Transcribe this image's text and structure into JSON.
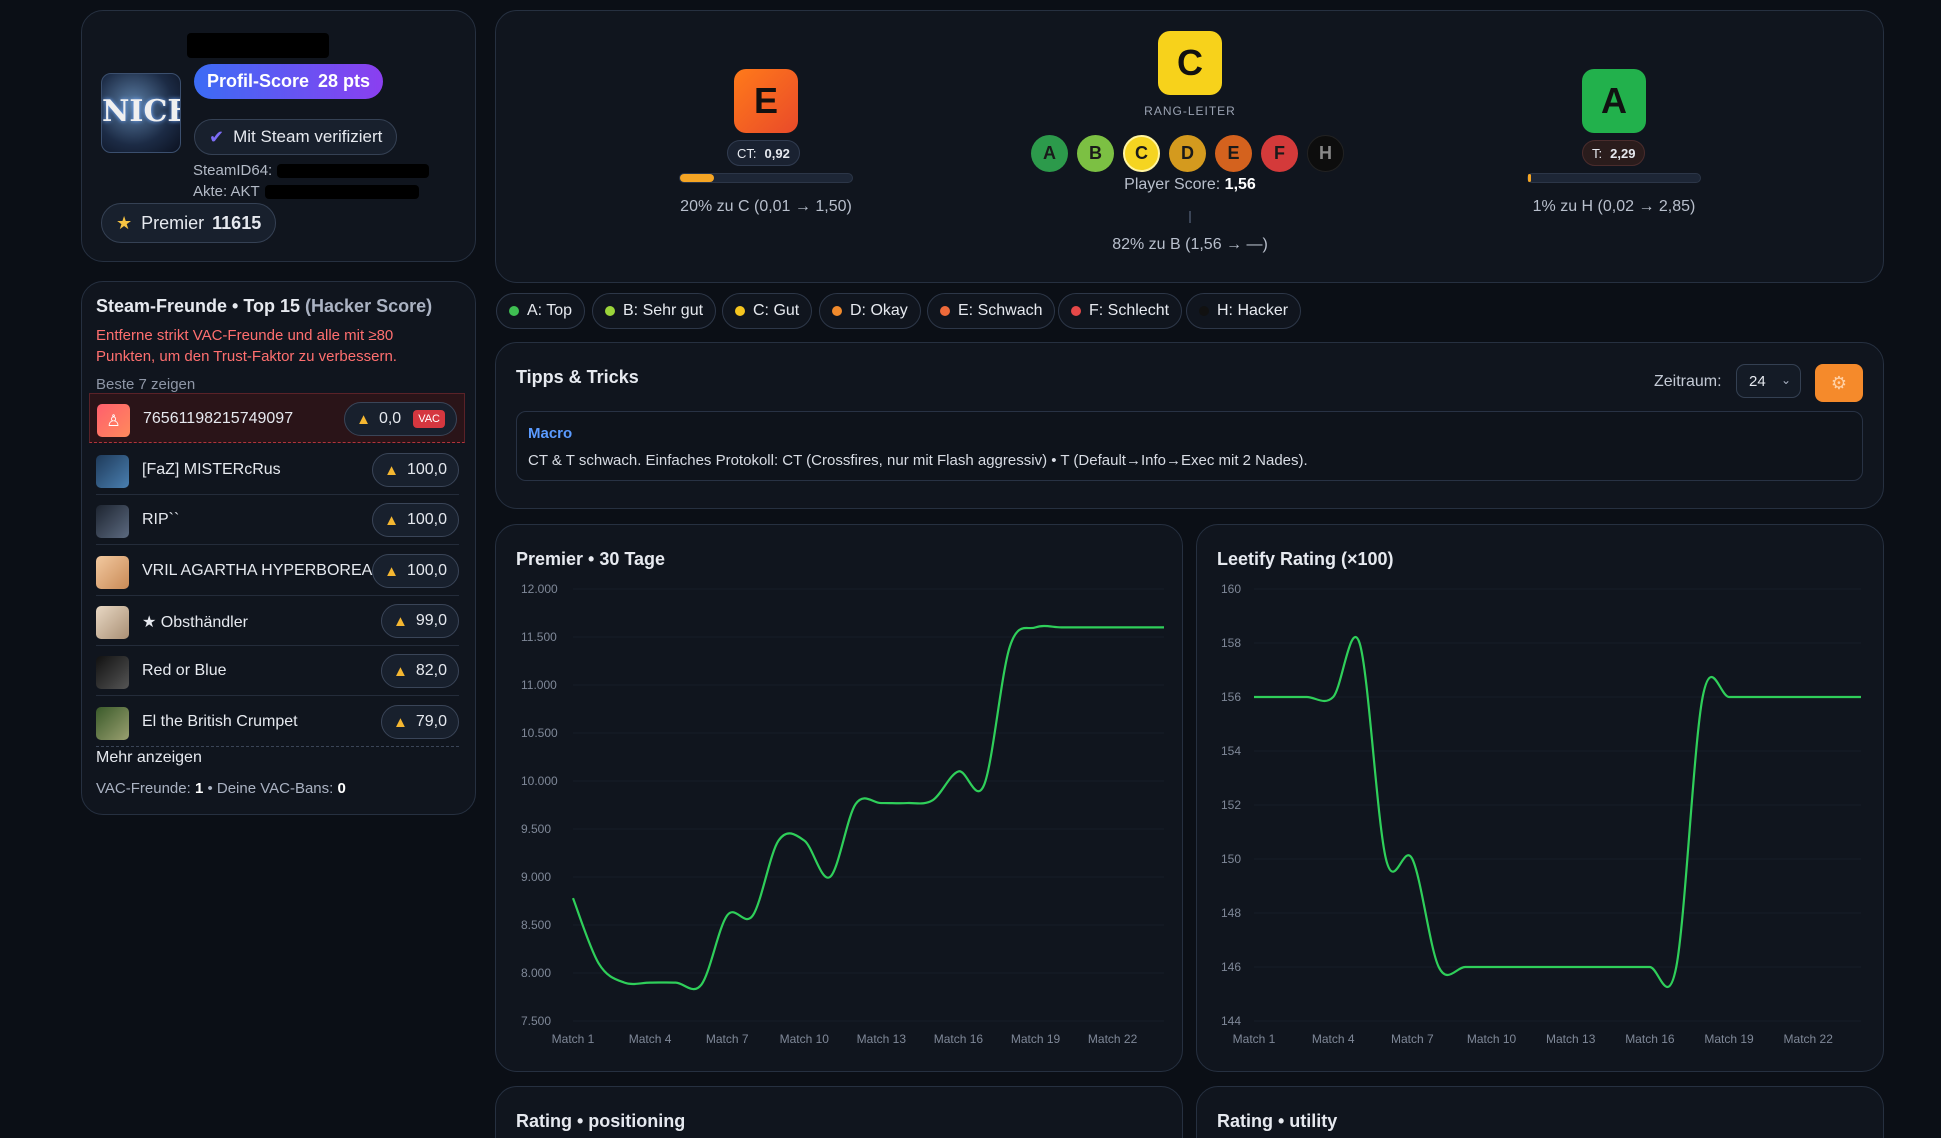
{
  "profile": {
    "score_label": "Profil-Score",
    "score_value": "28 pts",
    "verified_label": "Mit Steam verifiziert",
    "steamid_label": "SteamID64:",
    "akte_label": "Akte: AKT",
    "premier_label": "Premier",
    "premier_value": "11615",
    "avatar_text": "NICE"
  },
  "friends": {
    "title": "Steam-Freunde • Top 15",
    "title_suffix": "(Hacker Score)",
    "warning": "Entferne strikt VAC-Freunde und alle mit ≥80 Punkten, um den Trust-Faktor zu verbessern.",
    "show_best": "Beste 7 zeigen",
    "rows": [
      {
        "name": "76561198215749097",
        "score": "0,0",
        "vac": "VAC"
      },
      {
        "name": "[FaZ] MISTERcRus",
        "score": "100,0"
      },
      {
        "name": "RIP``",
        "score": "100,0"
      },
      {
        "name": "VRIL AGARTHA HYPERBOREA",
        "score": "100,0"
      },
      {
        "name": "★ Obsthändler",
        "score": "99,0"
      },
      {
        "name": "Red or Blue",
        "score": "82,0"
      },
      {
        "name": "El the British Crumpet",
        "score": "79,0"
      }
    ],
    "more": "Mehr anzeigen",
    "footer_vac_label": "VAC-Freunde:",
    "footer_vac_value": "1",
    "footer_bans_label": "• Deine VAC-Bans:",
    "footer_bans_value": "0"
  },
  "rank": {
    "ct": {
      "grade": "E",
      "label": "CT:",
      "value": "0,92",
      "progress": 0.2,
      "progress_text": "20% zu C (0,01 → 1,50)"
    },
    "overall": {
      "grade": "C",
      "ladder_label": "RANG-LEITER",
      "score_label": "Player Score:",
      "score_value": "1,56",
      "progress_text": "82% zu B (1,56 → —)"
    },
    "t": {
      "grade": "A",
      "label": "T:",
      "value": "2,29",
      "progress": 0.01,
      "progress_text": "1% zu H (0,02 → 2,85)"
    },
    "ladder": [
      "A",
      "B",
      "C",
      "D",
      "E",
      "F",
      "H"
    ],
    "colors": {
      "A": "#2c9a4b",
      "B": "#7cc043",
      "C": "#f5d421",
      "D": "#d49a1e",
      "E": "#d4621e",
      "F": "#d43a3a",
      "H": "#0d0d0d",
      "E_box": "#f15a24",
      "C_box": "#f7d21b",
      "A_box": "#22b14c"
    }
  },
  "legend": [
    {
      "label": "A: Top",
      "color": "#3fbf52"
    },
    {
      "label": "B: Sehr gut",
      "color": "#9bd43a"
    },
    {
      "label": "C: Gut",
      "color": "#f5c51f"
    },
    {
      "label": "D: Okay",
      "color": "#f08a2c"
    },
    {
      "label": "E: Schwach",
      "color": "#ee6a3a"
    },
    {
      "label": "F: Schlecht",
      "color": "#e54848"
    },
    {
      "label": "H: Hacker",
      "color": "#111111"
    }
  ],
  "tips": {
    "title": "Tipps & Tricks",
    "zeitraum_label": "Zeitraum:",
    "zeitraum_value": "24",
    "macro_title": "Macro",
    "macro_text": "CT & T schwach. Einfaches Protokoll: CT (Crossfires, nur mit Flash aggressiv) • T (Default→Info→Exec mit 2 Nades)."
  },
  "chart_data": [
    {
      "type": "line",
      "title": "Premier • 30 Tage",
      "x": [
        "Match 1",
        "Match 2",
        "Match 3",
        "Match 4",
        "Match 5",
        "Match 6",
        "Match 7",
        "Match 8",
        "Match 9",
        "Match 10",
        "Match 11",
        "Match 12",
        "Match 13",
        "Match 14",
        "Match 15",
        "Match 16",
        "Match 17",
        "Match 18",
        "Match 19",
        "Match 20",
        "Match 21",
        "Match 22",
        "Match 23",
        "Match 24"
      ],
      "xticks": [
        "Match 1",
        "Match 4",
        "Match 7",
        "Match 10",
        "Match 13",
        "Match 16",
        "Match 19",
        "Match 22"
      ],
      "series": [
        {
          "values": [
            8780,
            8100,
            7900,
            7900,
            7900,
            7880,
            8600,
            8600,
            9380,
            9380,
            9000,
            9760,
            9770,
            9770,
            9800,
            10100,
            9960,
            11400,
            11600,
            11600,
            11600,
            11600,
            11600,
            11600
          ]
        }
      ],
      "yticks": [
        "12.000",
        "11.500",
        "11.000",
        "10.500",
        "10.000",
        "9.500",
        "9.000",
        "8.500",
        "8.000",
        "7.500"
      ],
      "ylim": [
        7500,
        12000
      ],
      "color": "#2fcf5a"
    },
    {
      "type": "line",
      "title": "Leetify Rating (×100)",
      "x": [
        "Match 1",
        "Match 2",
        "Match 3",
        "Match 4",
        "Match 5",
        "Match 6",
        "Match 7",
        "Match 8",
        "Match 9",
        "Match 10",
        "Match 11",
        "Match 12",
        "Match 13",
        "Match 14",
        "Match 15",
        "Match 16",
        "Match 17",
        "Match 18",
        "Match 19",
        "Match 20",
        "Match 21",
        "Match 22",
        "Match 23",
        "Match 24"
      ],
      "xticks": [
        "Match 1",
        "Match 4",
        "Match 7",
        "Match 10",
        "Match 13",
        "Match 16",
        "Match 19",
        "Match 22"
      ],
      "series": [
        {
          "values": [
            156,
            156,
            156,
            156,
            158,
            150,
            150,
            146,
            146,
            146,
            146,
            146,
            146,
            146,
            146,
            146,
            146,
            156,
            156,
            156,
            156,
            156,
            156,
            156
          ]
        }
      ],
      "yticks": [
        "160",
        "158",
        "156",
        "154",
        "152",
        "150",
        "148",
        "146",
        "144"
      ],
      "ylim": [
        144,
        160
      ],
      "color": "#2fcf5a"
    }
  ],
  "bottom": {
    "left_title": "Rating • positioning",
    "right_title": "Rating • utility"
  }
}
